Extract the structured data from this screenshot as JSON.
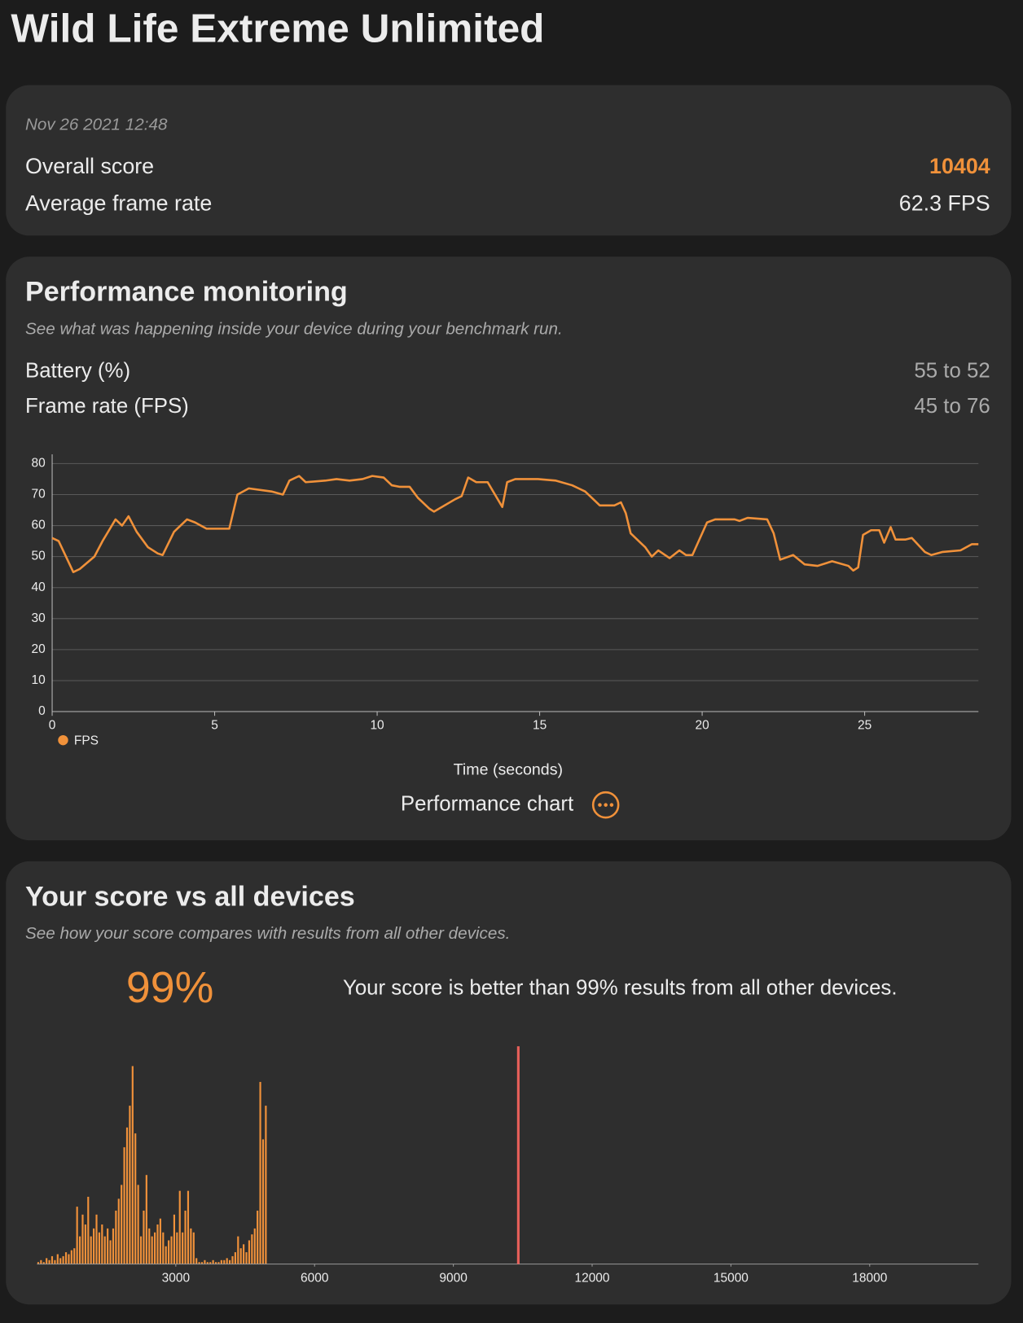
{
  "title": "Wild Life Extreme Unlimited",
  "summary": {
    "date": "Nov 26 2021 12:48",
    "overall_label": "Overall score",
    "overall_score": 10404,
    "fps_label": "Average frame rate",
    "fps_value": "62.3 FPS"
  },
  "performance": {
    "title": "Performance monitoring",
    "subtitle": "See what was happening inside your device during your benchmark run.",
    "rows": [
      {
        "label": "Battery (%)",
        "value": "55 to 52"
      },
      {
        "label": "Frame rate (FPS)",
        "value": "45 to 76"
      }
    ],
    "button": "Performance chart"
  },
  "comparison": {
    "title": "Your score vs all devices",
    "subtitle": "See how your score compares with results from all other devices.",
    "percent": "99%",
    "text": "Your score is better than 99% results from all other devices."
  },
  "chart_data": [
    {
      "type": "line",
      "xlabel": "Time (seconds)",
      "grid": true,
      "x": [
        0,
        0.2,
        0.65,
        0.85,
        1.3,
        1.55,
        1.95,
        2.15,
        2.35,
        2.6,
        2.95,
        3.25,
        3.4,
        3.75,
        4.15,
        4.4,
        4.75,
        5.1,
        5.45,
        5.7,
        6.05,
        6.75,
        7.1,
        7.3,
        7.6,
        7.8,
        8.4,
        8.75,
        9.15,
        9.55,
        9.85,
        10.2,
        10.45,
        10.7,
        11.0,
        11.25,
        11.6,
        11.75,
        12.4,
        12.6,
        12.8,
        13.05,
        13.4,
        13.85,
        14.0,
        14.25,
        14.95,
        15.5,
        16.0,
        16.2,
        16.4,
        16.7,
        16.85,
        17.3,
        17.5,
        17.65,
        17.8,
        18.15,
        18.25,
        18.45,
        18.65,
        19.0,
        19.3,
        19.5,
        19.7,
        20.15,
        20.4,
        21.0,
        21.15,
        21.4,
        22.0,
        22.2,
        22.4,
        22.8,
        23.15,
        23.55,
        24.0,
        24.5,
        24.65,
        24.8,
        24.95,
        25.2,
        25.45,
        25.6,
        25.8,
        25.95,
        26.25,
        26.45,
        26.85,
        27.05,
        27.4,
        27.95,
        28.3,
        28.5
      ],
      "series": [
        {
          "name": "FPS",
          "color": "#f0913a",
          "values": [
            56,
            55,
            45,
            46,
            50,
            55,
            62,
            60,
            63,
            58,
            53,
            51,
            50.5,
            58,
            62,
            61,
            59,
            59,
            59,
            70,
            72,
            71,
            70,
            74.5,
            76,
            74,
            74.5,
            75,
            74.5,
            75,
            76,
            75.5,
            73,
            72.5,
            72.5,
            69,
            65.5,
            64.5,
            68.5,
            69.5,
            75.5,
            74,
            74,
            66,
            74,
            75,
            75,
            74.5,
            73,
            72,
            71,
            68,
            66.5,
            66.5,
            67.5,
            64,
            57.5,
            54,
            53,
            50,
            52,
            49.5,
            52,
            50.5,
            50.5,
            61,
            62,
            62,
            61.5,
            62.5,
            62,
            57.5,
            49,
            50.5,
            47.5,
            47,
            48.5,
            47,
            45.5,
            46.5,
            57,
            58.5,
            58.5,
            54.5,
            59.5,
            55.5,
            55.5,
            56,
            51.5,
            50.5,
            51.5,
            52,
            54,
            54
          ]
        }
      ],
      "xlim": [
        0,
        28.5
      ],
      "ylim": [
        0,
        83
      ],
      "xticks": [
        0,
        5,
        10,
        15,
        20,
        25
      ],
      "yticks": [
        0,
        10,
        20,
        30,
        40,
        50,
        60,
        70,
        80
      ]
    },
    {
      "type": "histogram",
      "color": "#f0913a",
      "marker_color": "#e8605a",
      "bins": [
        0,
        60,
        120,
        180,
        240,
        300,
        360,
        420,
        480,
        540,
        600,
        660,
        720,
        780,
        840,
        900,
        960,
        1020,
        1080,
        1140,
        1200,
        1260,
        1320,
        1380,
        1440,
        1500,
        1560,
        1620,
        1680,
        1740,
        1800,
        1860,
        1920,
        1980,
        2040,
        2100,
        2160,
        2220,
        2280,
        2340,
        2400,
        2460,
        2520,
        2580,
        2640,
        2700,
        2760,
        2820,
        2880,
        2940,
        3000,
        3060,
        3120,
        3180,
        3240,
        3300,
        3360,
        3420,
        3480,
        3540,
        3600,
        3660,
        3720,
        3780,
        3840,
        3900,
        3960,
        4020,
        4080,
        4140,
        4200,
        4260,
        4320,
        4380,
        4440,
        4500,
        4560,
        4620,
        4680,
        4740,
        4800,
        4860,
        4920,
        4980
      ],
      "values": [
        1,
        2,
        1,
        3,
        2,
        4,
        2,
        5,
        3,
        4,
        6,
        5,
        7,
        8,
        29,
        14,
        25,
        20,
        34,
        14,
        18,
        25,
        16,
        20,
        14,
        18,
        12,
        18,
        27,
        33,
        40,
        59,
        69,
        80,
        100,
        66,
        40,
        14,
        27,
        45,
        18,
        14,
        16,
        20,
        23,
        16,
        9,
        12,
        14,
        25,
        16,
        37,
        16,
        27,
        37,
        18,
        16,
        3,
        1,
        1,
        2,
        1,
        1,
        2,
        1,
        1,
        2,
        2,
        3,
        2,
        4,
        6,
        14,
        8,
        10,
        6,
        12,
        15,
        18,
        27,
        92,
        63,
        80
      ],
      "xlim": [
        0,
        20350
      ],
      "ylim": [
        0,
        110
      ],
      "xticks": [
        3000,
        6000,
        9000,
        12000,
        15000,
        18000
      ]
    }
  ]
}
